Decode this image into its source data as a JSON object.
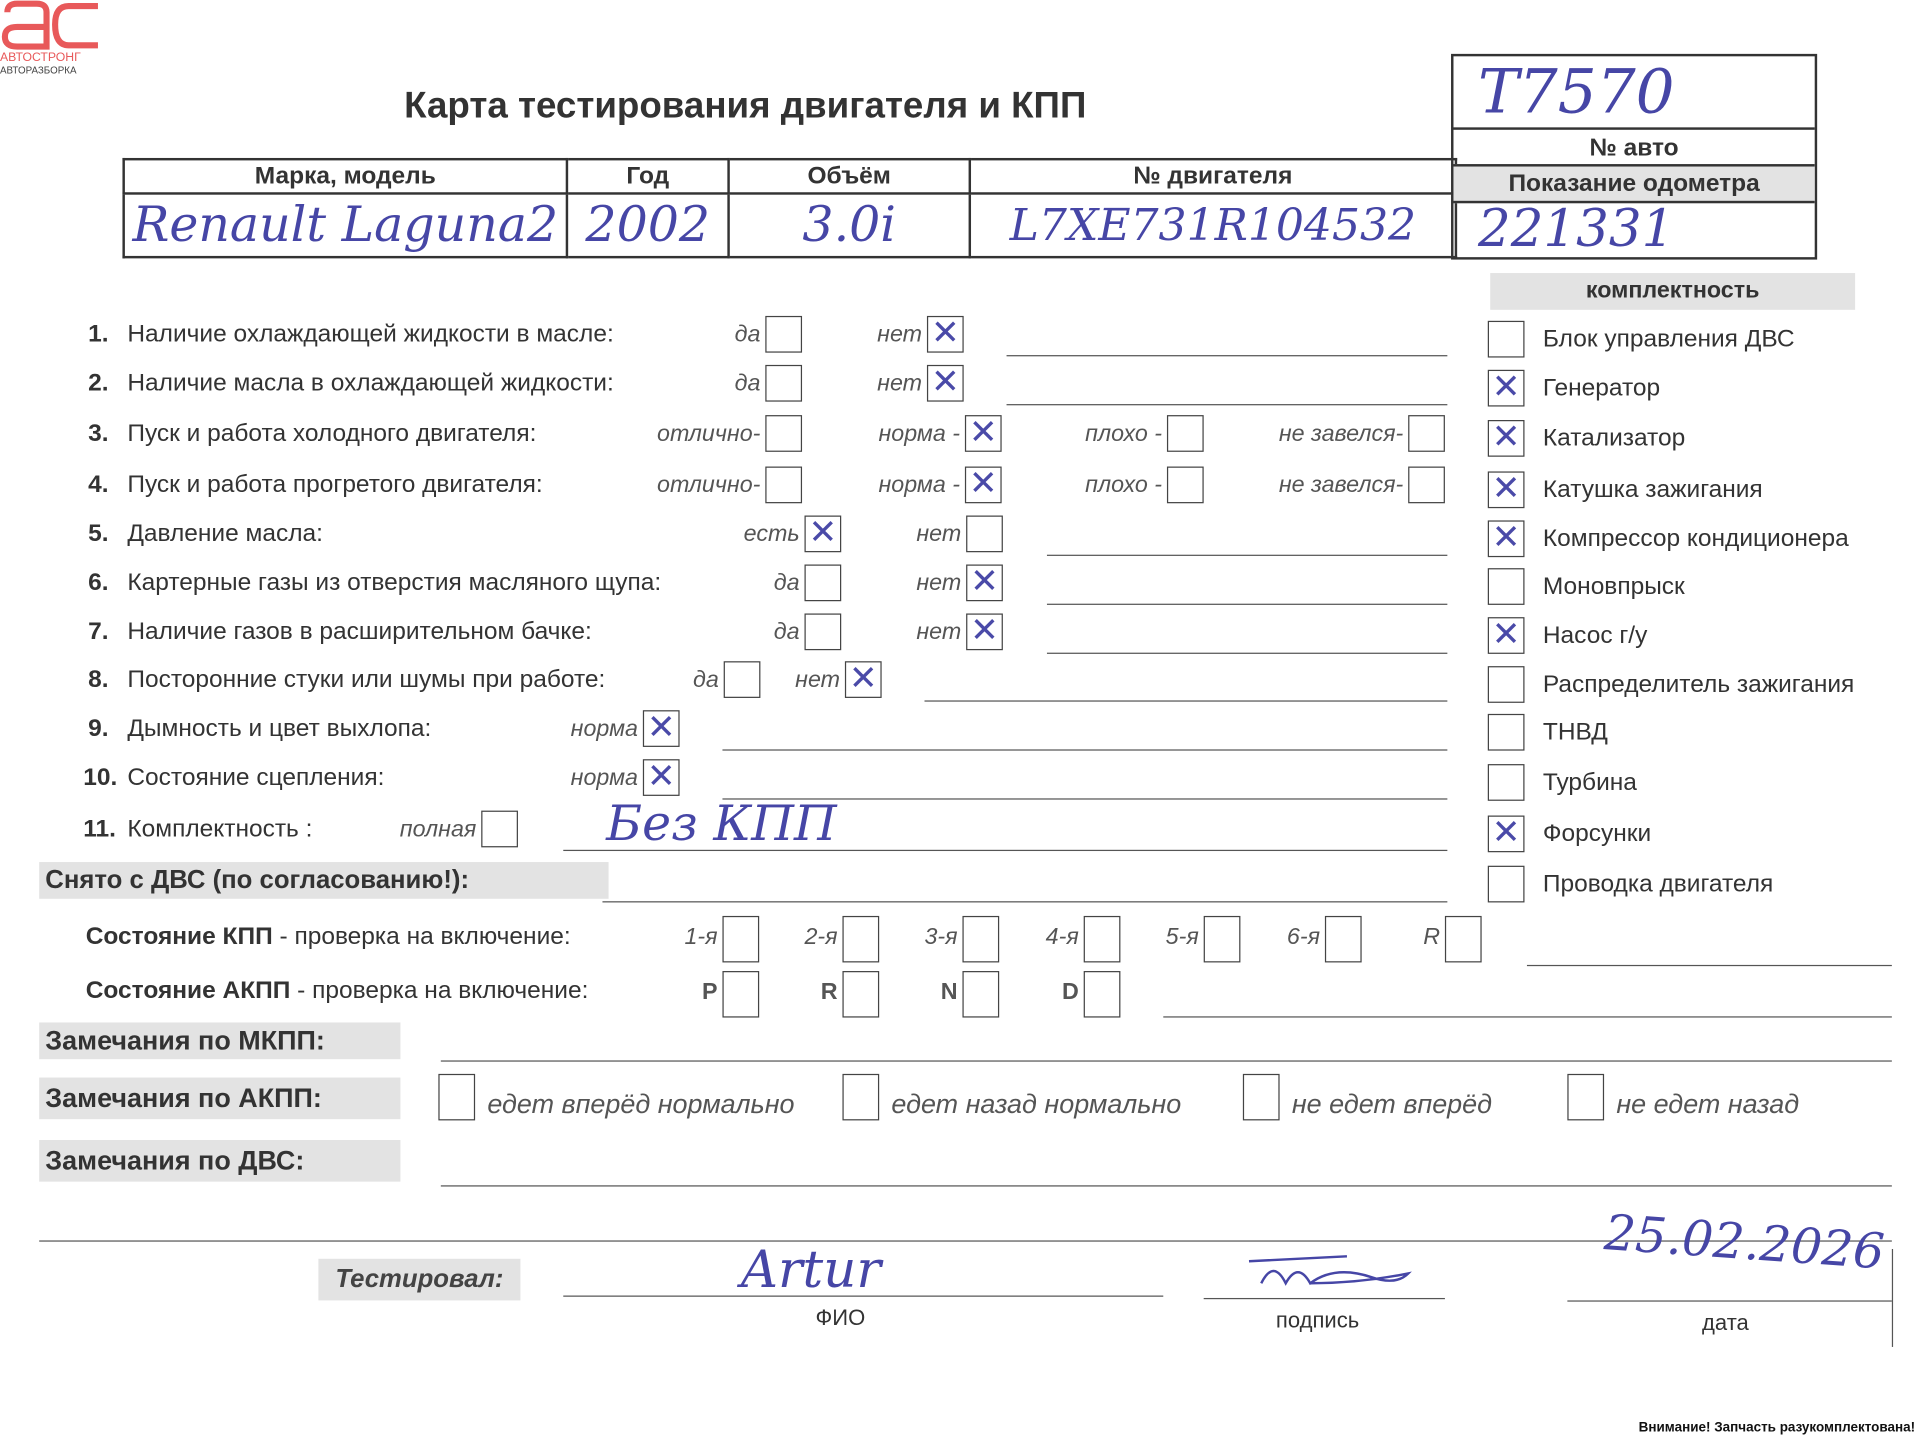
{
  "logo": {
    "brand": "АВТОСТРОНГ",
    "subtitle": "АВТОРАЗБОРКА",
    "color": "#e8595a"
  },
  "title": "Карта тестирования двигателя  и КПП",
  "vehicle": {
    "headers": [
      "Марка, модель",
      "Год",
      "Объём",
      "№ двигателя"
    ],
    "values": [
      "Renault Laguna2",
      "2002",
      "3.0i",
      "L7XE731R104532"
    ],
    "auto_no_label": "№ авто",
    "auto_no": "Т7570",
    "odometer_label": "Показание одометра",
    "odometer": "221331"
  },
  "checklist": [
    {
      "num": "1.",
      "label": "Наличие охлаждающей жидкости в масле:",
      "options": [
        {
          "label": "да",
          "checked": false
        },
        {
          "label": "нет",
          "checked": true
        }
      ]
    },
    {
      "num": "2.",
      "label": "Наличие масла в охлаждающей жидкости:",
      "options": [
        {
          "label": "да",
          "checked": false
        },
        {
          "label": "нет",
          "checked": true
        }
      ]
    },
    {
      "num": "3.",
      "label": "Пуск и работа холодного двигателя:",
      "options": [
        {
          "label": "отлично-",
          "checked": false
        },
        {
          "label": "норма -",
          "checked": true
        },
        {
          "label": "плохо -",
          "checked": false
        },
        {
          "label": "не завелся-",
          "checked": false
        }
      ]
    },
    {
      "num": "4.",
      "label": "Пуск и работа прогретого двигателя:",
      "options": [
        {
          "label": "отлично-",
          "checked": false
        },
        {
          "label": "норма -",
          "checked": true
        },
        {
          "label": "плохо -",
          "checked": false
        },
        {
          "label": "не завелся-",
          "checked": false
        }
      ]
    },
    {
      "num": "5.",
      "label": "Давление масла:",
      "options": [
        {
          "label": "есть",
          "checked": true
        },
        {
          "label": "нет",
          "checked": false
        }
      ]
    },
    {
      "num": "6.",
      "label": "Картерные газы из отверстия масляного щупа:",
      "options": [
        {
          "label": "да",
          "checked": false
        },
        {
          "label": "нет",
          "checked": true
        }
      ]
    },
    {
      "num": "7.",
      "label": "Наличие газов в расширительном бачке:",
      "options": [
        {
          "label": "да",
          "checked": false
        },
        {
          "label": "нет",
          "checked": true
        }
      ]
    },
    {
      "num": "8.",
      "label": "Посторонние стуки или шумы при работе:",
      "options": [
        {
          "label": "да",
          "checked": false
        },
        {
          "label": "нет",
          "checked": true
        }
      ]
    },
    {
      "num": "9.",
      "label": "Дымность и цвет выхлопа:",
      "options": [
        {
          "label": "норма",
          "checked": true
        }
      ]
    },
    {
      "num": "10.",
      "label": "Состояние сцепления:",
      "options": [
        {
          "label": "норма",
          "checked": true
        }
      ]
    },
    {
      "num": "11.",
      "label": "Комплектность :",
      "options": [
        {
          "label": "полная",
          "checked": false
        }
      ],
      "note": "Без КПП"
    }
  ],
  "completeness": {
    "title": "комплектность",
    "items": [
      {
        "label": "Блок управления ДВС",
        "checked": false
      },
      {
        "label": "Генератор",
        "checked": true
      },
      {
        "label": "Катализатор",
        "checked": true
      },
      {
        "label": "Катушка зажигания",
        "checked": true
      },
      {
        "label": "Компрессор кондиционера",
        "checked": true
      },
      {
        "label": "Моновпрыск",
        "checked": false
      },
      {
        "label": "Насос г/у",
        "checked": true
      },
      {
        "label": "Распределитель зажигания",
        "checked": false
      },
      {
        "label": "ТНВД",
        "checked": false
      },
      {
        "label": "Турбина",
        "checked": false
      },
      {
        "label": "Форсунки",
        "checked": true
      },
      {
        "label": "Проводка двигателя",
        "checked": false
      }
    ]
  },
  "removed_label": "Снято с ДВС (по согласованию!):",
  "manual_gearbox": {
    "label_bold": "Состояние КПП",
    "label_rest": " - проверка на включение:",
    "gears": [
      "1-я",
      "2-я",
      "3-я",
      "4-я",
      "5-я",
      "6-я",
      "R"
    ]
  },
  "auto_gearbox": {
    "label_bold": "Состояние АКПП",
    "label_rest": " - проверка на включение:",
    "gears": [
      "P",
      "R",
      "N",
      "D"
    ]
  },
  "remarks": {
    "manual": "Замечания по МКПП:",
    "auto": "Замечания по АКПП:",
    "auto_options": [
      "едет вперёд нормально",
      "едет назад нормально",
      "не едет вперёд",
      "не едет назад"
    ],
    "engine": "Замечания по ДВС:"
  },
  "tested": {
    "label": "Тестировал:",
    "name": "Artur",
    "signature": "подпись (signed)",
    "date": "25.02.2026",
    "name_caption": "ФИО",
    "signature_caption": "подпись",
    "date_caption": "дата"
  },
  "footer": "Внимание! Запчасть разукомплектована!"
}
